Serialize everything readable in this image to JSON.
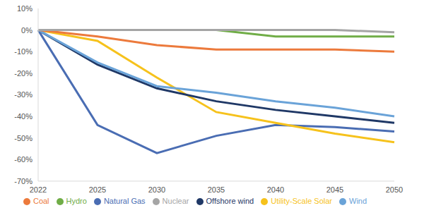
{
  "chart_data": {
    "type": "line",
    "categories": [
      "2022",
      "2025",
      "2030",
      "2035",
      "2040",
      "2045",
      "2050"
    ],
    "series": [
      {
        "name": "Natural Gas",
        "color": "#4a6db3",
        "values": [
          0,
          -44,
          -57,
          -49,
          -44,
          -45,
          -47
        ]
      },
      {
        "name": "Utility-Scale Solar",
        "color": "#f6c21c",
        "values": [
          0,
          -5,
          -22,
          -38,
          -43,
          -48,
          -52
        ]
      },
      {
        "name": "Offshore wind",
        "color": "#1f3866",
        "values": [
          0,
          -16,
          -27,
          -33,
          -37,
          -40,
          -43
        ]
      },
      {
        "name": "Wind",
        "color": "#6aa3d8",
        "values": [
          0,
          -15,
          -26,
          -29,
          -33,
          -36,
          -40
        ]
      },
      {
        "name": "Coal",
        "color": "#ec7a3c",
        "values": [
          0,
          -3,
          -7,
          -9,
          -9,
          -9,
          -10
        ]
      },
      {
        "name": "Hydro",
        "color": "#70ad47",
        "values": [
          0,
          0,
          0,
          0,
          -3,
          -3,
          -3
        ]
      },
      {
        "name": "Nuclear",
        "color": "#a5a5a5",
        "values": [
          0,
          0,
          0,
          0,
          0,
          0,
          -1
        ]
      }
    ],
    "ylim": [
      -70,
      10
    ],
    "yticks": [
      {
        "value": 10,
        "label": "10%"
      },
      {
        "value": 0,
        "label": "0%"
      },
      {
        "value": -10,
        "label": "-10%"
      },
      {
        "value": -20,
        "label": "-20%"
      },
      {
        "value": -30,
        "label": "-30%"
      },
      {
        "value": -40,
        "label": "-40%"
      },
      {
        "value": -50,
        "label": "-50%"
      },
      {
        "value": -60,
        "label": "-60%"
      },
      {
        "value": -70,
        "label": "-70%"
      }
    ],
    "grid": false,
    "legend": "bottom"
  }
}
